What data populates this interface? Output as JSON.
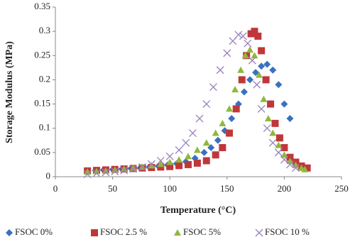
{
  "chart_data": {
    "type": "scatter",
    "xlabel": "Temperature (°C)",
    "ylabel": "Storage Modulus (MPa)",
    "xlim": [
      0,
      250
    ],
    "xticks": [
      0,
      50,
      100,
      150,
      200,
      250
    ],
    "ylim": [
      0,
      0.35
    ],
    "yticks": [
      0,
      0.05,
      0.1,
      0.15,
      0.2,
      0.25,
      0.3,
      0.35
    ],
    "grid": false,
    "legend": "bottom",
    "series": [
      {
        "name": "FSOC 0%",
        "color": "#3b70c0",
        "marker": "diamond",
        "x": [
          28,
          35,
          42,
          50,
          58,
          66,
          74,
          82,
          90,
          98,
          106,
          114,
          122,
          130,
          136,
          142,
          148,
          154,
          160,
          165,
          170,
          175,
          180,
          185,
          190,
          195,
          200,
          205
        ],
        "values": [
          0.012,
          0.013,
          0.014,
          0.015,
          0.016,
          0.017,
          0.018,
          0.02,
          0.022,
          0.024,
          0.027,
          0.031,
          0.038,
          0.05,
          0.06,
          0.075,
          0.095,
          0.12,
          0.15,
          0.175,
          0.2,
          0.215,
          0.228,
          0.232,
          0.22,
          0.19,
          0.15,
          0.12
        ]
      },
      {
        "name": "FSOC 2.5 %",
        "color": "#c0373a",
        "marker": "square",
        "x": [
          28,
          36,
          44,
          52,
          60,
          68,
          76,
          84,
          92,
          100,
          108,
          116,
          124,
          132,
          140,
          146,
          152,
          158,
          163,
          167,
          171,
          174,
          177,
          180,
          184,
          188,
          192,
          196,
          200,
          205,
          210,
          215,
          220
        ],
        "values": [
          0.012,
          0.013,
          0.014,
          0.015,
          0.016,
          0.017,
          0.018,
          0.019,
          0.02,
          0.021,
          0.023,
          0.025,
          0.028,
          0.033,
          0.045,
          0.06,
          0.09,
          0.14,
          0.2,
          0.25,
          0.295,
          0.3,
          0.29,
          0.26,
          0.2,
          0.15,
          0.11,
          0.08,
          0.06,
          0.04,
          0.03,
          0.022,
          0.018
        ]
      },
      {
        "name": "FSOC 5%",
        "color": "#8fb83e",
        "marker": "triangle",
        "x": [
          28,
          36,
          44,
          52,
          60,
          68,
          76,
          84,
          92,
          100,
          108,
          116,
          124,
          132,
          140,
          146,
          152,
          157,
          162,
          166,
          170,
          174,
          178,
          182,
          186,
          190,
          195,
          200,
          205,
          210,
          215,
          218
        ],
        "values": [
          0.01,
          0.011,
          0.012,
          0.014,
          0.016,
          0.018,
          0.02,
          0.023,
          0.026,
          0.03,
          0.035,
          0.042,
          0.055,
          0.07,
          0.09,
          0.11,
          0.14,
          0.18,
          0.22,
          0.25,
          0.262,
          0.25,
          0.21,
          0.16,
          0.12,
          0.09,
          0.065,
          0.045,
          0.032,
          0.024,
          0.018,
          0.015
        ]
      },
      {
        "name": "FSOC 10 %",
        "color": "#9880bd",
        "marker": "x",
        "x": [
          28,
          36,
          44,
          52,
          60,
          68,
          76,
          84,
          92,
          100,
          108,
          114,
          120,
          126,
          132,
          138,
          144,
          150,
          155,
          160,
          164,
          168,
          172,
          176,
          180,
          185,
          190,
          195,
          200,
          205,
          210
        ],
        "values": [
          0.005,
          0.007,
          0.009,
          0.011,
          0.013,
          0.016,
          0.02,
          0.026,
          0.033,
          0.042,
          0.055,
          0.07,
          0.09,
          0.12,
          0.15,
          0.185,
          0.22,
          0.255,
          0.28,
          0.293,
          0.29,
          0.275,
          0.24,
          0.19,
          0.14,
          0.1,
          0.07,
          0.05,
          0.035,
          0.025,
          0.018
        ]
      }
    ]
  }
}
